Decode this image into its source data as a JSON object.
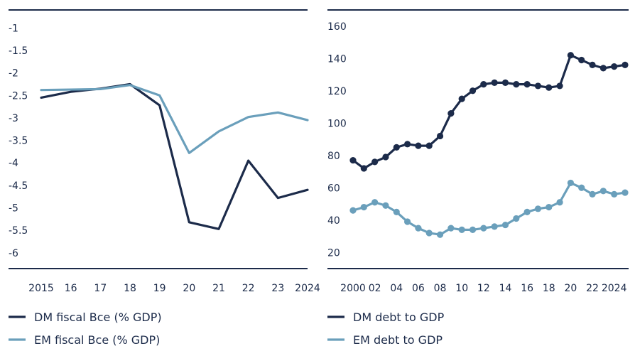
{
  "colors": {
    "dark": "#1c2b4a",
    "light": "#6a9fbb",
    "axis": "#1c2b4a"
  },
  "chart_data": [
    {
      "type": "line",
      "title": "",
      "xlabel": "",
      "ylabel": "",
      "categories": [
        "2015",
        "16",
        "17",
        "18",
        "19",
        "20",
        "21",
        "22",
        "23",
        "2024"
      ],
      "ylim": [
        -6.35,
        -0.6
      ],
      "yticks": [
        -1,
        -1.5,
        -2,
        -2.5,
        -3,
        -3.5,
        -4,
        -4.5,
        -5,
        -5.5,
        -6
      ],
      "ytick_labels": [
        "-1",
        "-1.5",
        "-2",
        "-2.5",
        "-3",
        "-3.5",
        "-4",
        "-4.5",
        "-5",
        "-5.5",
        "-6"
      ],
      "markers": false,
      "series": [
        {
          "name": "DM fiscal Bce (% GDP)",
          "color": "#1c2b4a",
          "values": [
            -2.55,
            -2.42,
            -2.35,
            -2.25,
            -2.72,
            -5.32,
            -5.47,
            -3.95,
            -4.78,
            -4.6
          ]
        },
        {
          "name": "EM fiscal Bce (% GDP)",
          "color": "#6a9fbb",
          "values": [
            -2.38,
            -2.37,
            -2.36,
            -2.27,
            -2.5,
            -3.78,
            -3.3,
            -2.98,
            -2.88,
            -3.05
          ]
        }
      ]
    },
    {
      "type": "line",
      "title": "",
      "xlabel": "",
      "ylabel": "",
      "x": [
        2000,
        2001,
        2002,
        2003,
        2004,
        2005,
        2006,
        2007,
        2008,
        2009,
        2010,
        2011,
        2012,
        2013,
        2014,
        2015,
        2016,
        2017,
        2018,
        2019,
        2020,
        2021,
        2022,
        2023,
        2024,
        2025
      ],
      "xtick_positions": [
        2000,
        2002,
        2004,
        2006,
        2008,
        2010,
        2012,
        2014,
        2016,
        2018,
        2020,
        2022,
        2024
      ],
      "xtick_labels": [
        "2000",
        "02",
        "04",
        "06",
        "08",
        "10",
        "12",
        "14",
        "16",
        "18",
        "20",
        "22",
        "2024"
      ],
      "ylim": [
        10,
        170
      ],
      "yticks": [
        20,
        40,
        60,
        80,
        100,
        120,
        140,
        160
      ],
      "ytick_labels": [
        "20",
        "40",
        "60",
        "80",
        "100",
        "120",
        "140",
        "160"
      ],
      "markers": true,
      "series": [
        {
          "name": "DM debt to GDP",
          "color": "#1c2b4a",
          "values": [
            77,
            72,
            76,
            79,
            85,
            87,
            86,
            86,
            92,
            106,
            115,
            120,
            124,
            125,
            125,
            124,
            124,
            123,
            122,
            123,
            142,
            139,
            136,
            134,
            135,
            136
          ]
        },
        {
          "name": "EM debt to GDP",
          "color": "#6a9fbb",
          "values": [
            46,
            48,
            51,
            49,
            45,
            39,
            35,
            32,
            31,
            35,
            34,
            34,
            35,
            36,
            37,
            41,
            45,
            47,
            48,
            51,
            63,
            60,
            56,
            58,
            56,
            57
          ]
        }
      ]
    }
  ]
}
